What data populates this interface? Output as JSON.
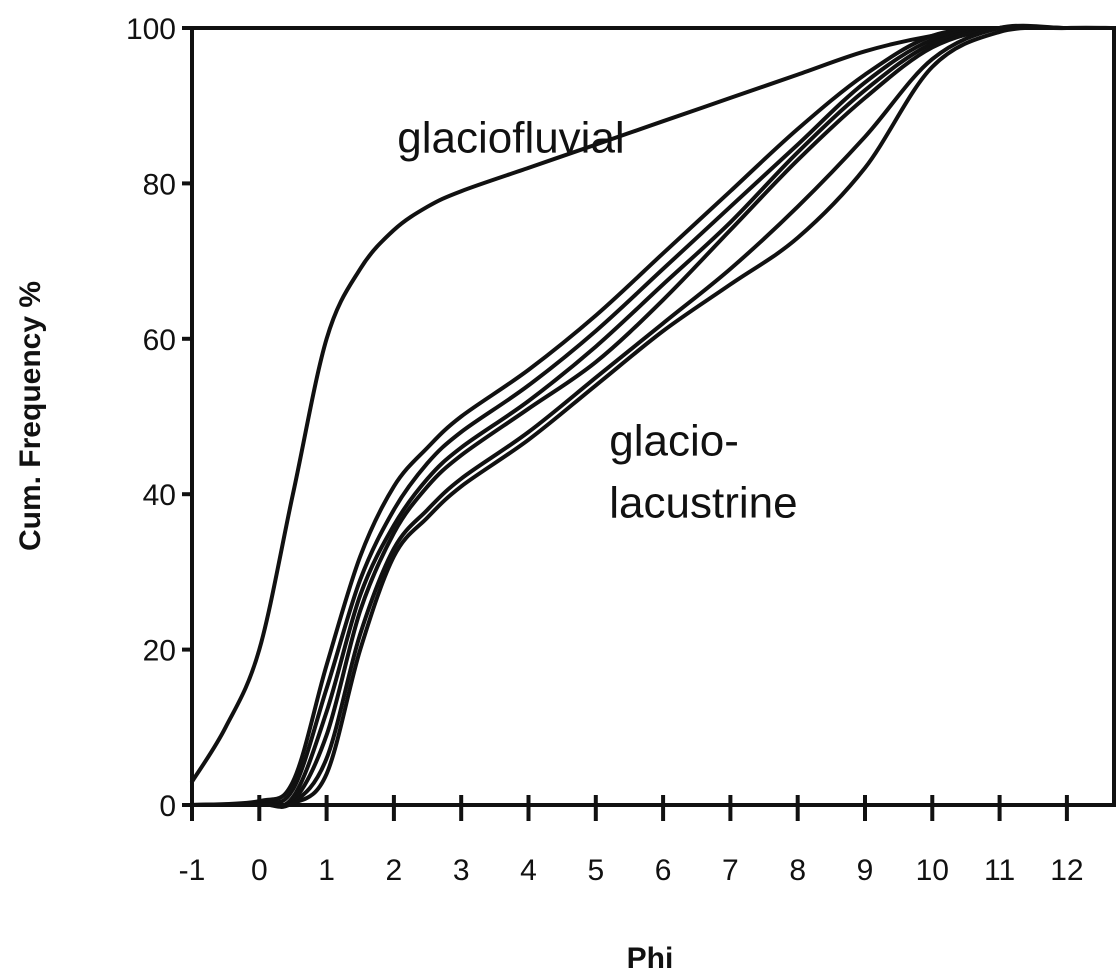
{
  "chart_data": {
    "type": "line",
    "title": "",
    "xlabel": "Phi",
    "ylabel": "Cum. Frequency %",
    "xlim": [
      -1,
      12.7
    ],
    "ylim": [
      0,
      100
    ],
    "x_ticks": [
      -1,
      0,
      1,
      2,
      3,
      4,
      5,
      6,
      7,
      8,
      9,
      10,
      11,
      12
    ],
    "y_ticks": [
      0,
      20,
      40,
      60,
      80,
      100
    ],
    "grid": false,
    "legend": "none",
    "annotations": [
      {
        "text": "glaciofluvial",
        "x": 2.05,
        "y": 84
      },
      {
        "text": "glacio-",
        "x": 5.2,
        "y": 45
      },
      {
        "text": "lacustrine",
        "x": 5.2,
        "y": 37
      }
    ],
    "series": [
      {
        "group": "glaciofluvial",
        "x": [
          -1,
          -0.5,
          0,
          0.5,
          1,
          1.5,
          2,
          2.5,
          3,
          4,
          5,
          6,
          7,
          8,
          9,
          10,
          11,
          12,
          12.7
        ],
        "y": [
          3,
          10,
          20,
          40,
          60,
          69,
          74,
          77,
          79,
          82,
          85,
          88,
          91,
          94,
          97,
          99,
          100,
          100,
          100
        ]
      },
      {
        "group": "glaciolacustrine",
        "x": [
          -1,
          0,
          0.5,
          1,
          1.5,
          2,
          2.5,
          3,
          4,
          5,
          6,
          7,
          8,
          9,
          10,
          11,
          12,
          12.7
        ],
        "y": [
          0,
          0.5,
          3,
          18,
          32,
          41,
          46,
          50,
          56,
          63,
          71,
          79,
          87,
          94,
          99,
          100,
          100,
          100
        ]
      },
      {
        "group": "glaciolacustrine",
        "x": [
          -1,
          0,
          0.5,
          1,
          1.5,
          2,
          2.5,
          3,
          4,
          5,
          6,
          7,
          8,
          9,
          10,
          11,
          12,
          12.7
        ],
        "y": [
          0,
          0.3,
          2,
          15,
          29,
          38,
          44,
          48,
          54,
          61,
          69,
          77,
          85,
          93,
          98.5,
          100,
          100,
          100
        ]
      },
      {
        "group": "glaciolacustrine",
        "x": [
          -1,
          0,
          0.5,
          1,
          1.5,
          2,
          2.5,
          3,
          4,
          5,
          6,
          7,
          8,
          9,
          10,
          11,
          12,
          12.7
        ],
        "y": [
          0,
          0.2,
          1,
          12,
          27,
          36,
          42,
          46,
          52,
          59,
          67,
          75,
          84,
          92,
          98,
          100,
          100,
          100
        ]
      },
      {
        "group": "glaciolacustrine",
        "x": [
          -1,
          0,
          0.5,
          1,
          1.5,
          2,
          2.5,
          3,
          4,
          5,
          6,
          7,
          8,
          9,
          10,
          11,
          12,
          12.7
        ],
        "y": [
          0,
          0.1,
          0.5,
          9,
          25,
          35,
          41,
          45,
          51,
          57,
          65,
          74,
          83,
          91,
          97.5,
          100,
          100,
          100
        ]
      },
      {
        "group": "glaciolacustrine",
        "x": [
          -1,
          0,
          0.5,
          1,
          1.5,
          2,
          2.5,
          3,
          4,
          5,
          6,
          7,
          8,
          9,
          10,
          11,
          12,
          12.7
        ],
        "y": [
          0,
          0.1,
          0.3,
          6,
          22,
          33,
          38,
          42,
          48,
          55,
          62,
          69,
          77,
          86,
          96,
          100,
          100,
          100
        ]
      },
      {
        "group": "glaciolacustrine",
        "x": [
          -1,
          0,
          0.5,
          1,
          1.5,
          2,
          2.5,
          3,
          4,
          5,
          6,
          7,
          8,
          9,
          10,
          11,
          12,
          12.7
        ],
        "y": [
          0,
          0.1,
          0.2,
          4,
          20,
          32,
          37,
          41,
          47,
          54,
          61,
          67,
          73,
          82,
          95,
          99.5,
          100,
          100
        ]
      }
    ]
  }
}
